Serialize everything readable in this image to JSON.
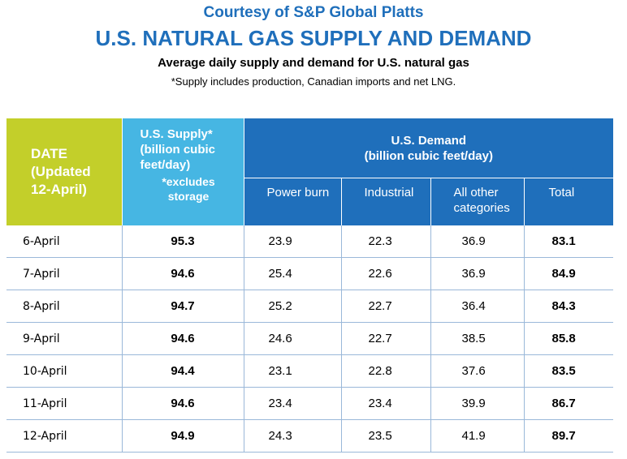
{
  "header": {
    "courtesy": "Courtesy of S&P Global Platts",
    "title": "U.S. NATURAL GAS SUPPLY AND DEMAND",
    "subtitle": "Average daily supply and demand for U.S. natural gas",
    "footnote": "*Supply includes production, Canadian imports and net LNG."
  },
  "table": {
    "date_header": {
      "line1": "DATE",
      "line2": "(Updated",
      "line3": "12-April)"
    },
    "supply_header": {
      "main": "U.S. Supply*",
      "unit1": "(billion cubic",
      "unit2": "feet/day)",
      "note1": "*excludes",
      "note2": "storage"
    },
    "demand_header": {
      "main": "U.S. Demand",
      "unit": "(billion cubic feet/day)"
    },
    "demand_columns": [
      {
        "line1": "Power burn",
        "line2": ""
      },
      {
        "line1": "Industrial",
        "line2": ""
      },
      {
        "line1": "All other",
        "line2": "categories"
      },
      {
        "line1": "Total",
        "line2": ""
      }
    ],
    "rows": [
      {
        "date": "6-April",
        "supply": "95.3",
        "power": "23.9",
        "industrial": "22.3",
        "other": "36.9",
        "total": "83.1"
      },
      {
        "date": "7-April",
        "supply": "94.6",
        "power": "25.4",
        "industrial": "22.6",
        "other": "36.9",
        "total": "84.9"
      },
      {
        "date": "8-April",
        "supply": "94.7",
        "power": "25.2",
        "industrial": "22.7",
        "other": "36.4",
        "total": "84.3"
      },
      {
        "date": "9-April",
        "supply": "94.6",
        "power": "24.6",
        "industrial": "22.7",
        "other": "38.5",
        "total": "85.8"
      },
      {
        "date": "10-April",
        "supply": "94.4",
        "power": "23.1",
        "industrial": "22.8",
        "other": "37.6",
        "total": "83.5"
      },
      {
        "date": "11-April",
        "supply": "94.6",
        "power": "23.4",
        "industrial": "23.4",
        "other": "39.9",
        "total": "86.7"
      },
      {
        "date": "12-April",
        "supply": "94.9",
        "power": "24.3",
        "industrial": "23.5",
        "other": "41.9",
        "total": "89.7"
      }
    ]
  },
  "colors": {
    "title_blue": "#1f6fbb",
    "date_header_green": "#c3cf2a",
    "supply_header_cyan": "#46b6e3",
    "demand_header_blue": "#1f6fbb"
  }
}
